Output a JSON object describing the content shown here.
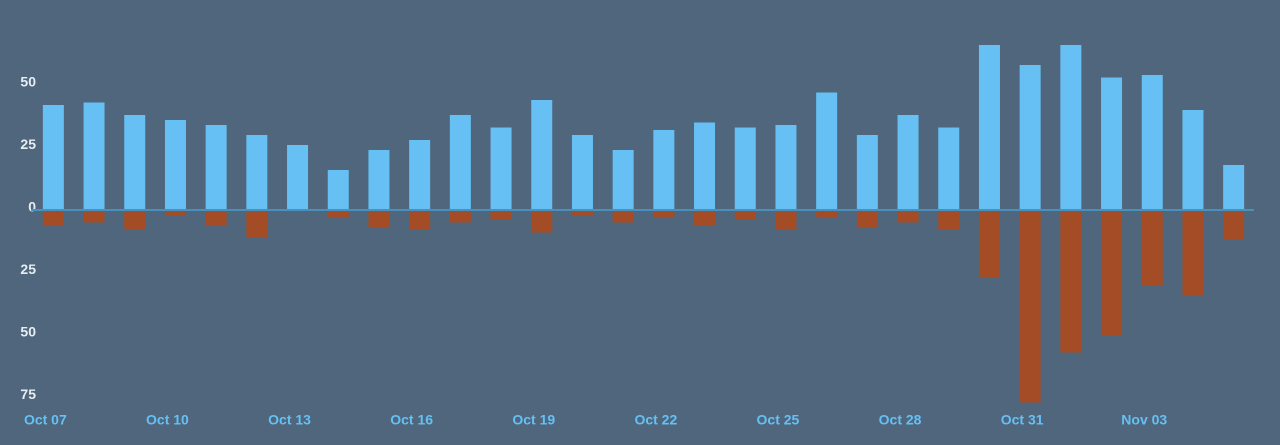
{
  "chart_data": {
    "type": "bar",
    "categories": [
      "Oct 07",
      null,
      null,
      "Oct 10",
      null,
      null,
      "Oct 13",
      null,
      null,
      "Oct 16",
      null,
      null,
      "Oct 19",
      null,
      null,
      "Oct 22",
      null,
      null,
      "Oct 25",
      null,
      null,
      "Oct 28",
      null,
      null,
      "Oct 31",
      null,
      null,
      "Nov 03",
      null,
      null
    ],
    "series": [
      {
        "color": "#66c0f4",
        "values": [
          42,
          43,
          38,
          36,
          34,
          30,
          26,
          16,
          24,
          28,
          38,
          33,
          44,
          30,
          24,
          32,
          35,
          33,
          34,
          47,
          30,
          38,
          33,
          66,
          58,
          66,
          53,
          54,
          40,
          18
        ]
      },
      {
        "color": "#a34c25",
        "values": [
          -6,
          -5,
          -8,
          -2,
          -6,
          -11,
          0,
          -3,
          -7,
          -8,
          -5,
          -4,
          -9,
          -2,
          -5,
          -3,
          -6,
          -4,
          -8,
          -3,
          -7,
          -5,
          -8,
          -27,
          -77,
          -57,
          -50,
          -30,
          -34,
          -12
        ]
      }
    ],
    "ylim": [
      -80,
      84
    ],
    "yticks": [
      {
        "value": -75,
        "label": "75"
      },
      {
        "value": -50,
        "label": "50"
      },
      {
        "value": -25,
        "label": "25"
      },
      0,
      25,
      50
    ],
    "grid": false
  }
}
